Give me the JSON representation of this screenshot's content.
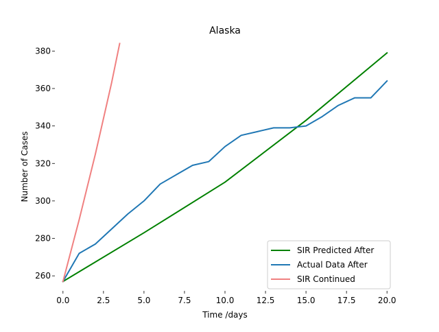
{
  "chart_data": {
    "type": "line",
    "title": "Alaska",
    "xlabel": "Time /days",
    "ylabel": "Number of Cases",
    "xlim": [
      -0.5,
      20.5
    ],
    "ylim": [
      252,
      386
    ],
    "xticks": [
      0.0,
      2.5,
      5.0,
      7.5,
      10.0,
      12.5,
      15.0,
      17.5,
      20.0
    ],
    "xtick_labels": [
      "0.0",
      "2.5",
      "5.0",
      "7.5",
      "10.0",
      "12.5",
      "15.0",
      "17.5",
      "20.0"
    ],
    "yticks": [
      260,
      280,
      300,
      320,
      340,
      360,
      380
    ],
    "ytick_labels": [
      "260",
      "280",
      "300",
      "320",
      "340",
      "360",
      "380"
    ],
    "grid": false,
    "legend_position": "lower-right",
    "series": [
      {
        "name": "SIR Predicted After",
        "color": "#008000",
        "x": [
          0,
          5,
          10,
          15,
          20
        ],
        "y": [
          257,
          283,
          310,
          343,
          379
        ]
      },
      {
        "name": "Actual Data After",
        "color": "#1f77b4",
        "x": [
          0,
          1,
          2,
          3,
          4,
          5,
          6,
          7,
          8,
          9,
          10,
          11,
          12,
          13,
          14,
          15,
          16,
          17,
          18,
          19,
          20
        ],
        "y": [
          257,
          272,
          277,
          285,
          293,
          300,
          309,
          314,
          319,
          321,
          329,
          335,
          337,
          339,
          339,
          340,
          345,
          351,
          355,
          355,
          364
        ]
      },
      {
        "name": "SIR Continued",
        "color": "#f08080",
        "x": [
          0,
          1,
          2,
          3,
          3.5
        ],
        "y": [
          257,
          290,
          325,
          363,
          384
        ]
      }
    ]
  }
}
